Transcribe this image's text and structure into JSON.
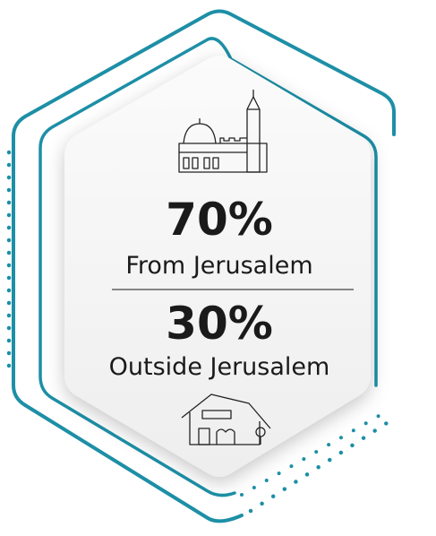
{
  "stats": [
    {
      "value": "70%",
      "label": "From Jerusalem"
    },
    {
      "value": "30%",
      "label": "Outside Jerusalem"
    }
  ]
}
